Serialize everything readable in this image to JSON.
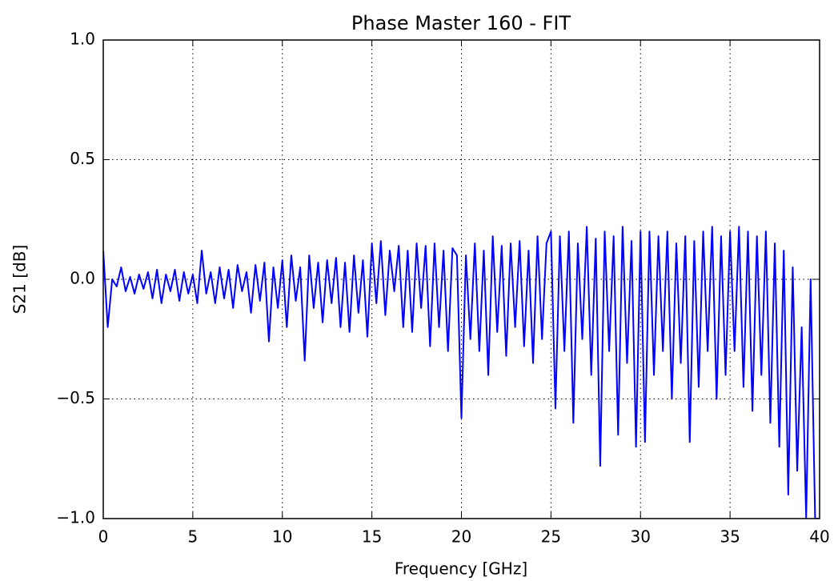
{
  "chart_data": {
    "type": "line",
    "title": "Phase Master 160 - FIT",
    "xlabel": "Frequency [GHz]",
    "ylabel": "S21 [dB]",
    "color": "#0000ff",
    "grid": true,
    "xlim": [
      0,
      40
    ],
    "xticks": [
      0,
      5,
      10,
      15,
      20,
      25,
      30,
      35,
      40
    ],
    "ylim": [
      -1,
      1
    ],
    "yticks": [
      {
        "value": -1,
        "label": "−1.0"
      },
      {
        "value": -0.5,
        "label": "−0.5"
      },
      {
        "value": 0,
        "label": "0.0"
      },
      {
        "value": 0.5,
        "label": "0.5"
      },
      {
        "value": 1,
        "label": "1.0"
      }
    ],
    "x": [
      0,
      0.25,
      0.5,
      0.75,
      1,
      1.25,
      1.5,
      1.75,
      2,
      2.25,
      2.5,
      2.75,
      3,
      3.25,
      3.5,
      3.75,
      4,
      4.25,
      4.5,
      4.75,
      5,
      5.25,
      5.5,
      5.75,
      6,
      6.25,
      6.5,
      6.75,
      7,
      7.25,
      7.5,
      7.75,
      8,
      8.25,
      8.5,
      8.75,
      9,
      9.25,
      9.5,
      9.75,
      10,
      10.25,
      10.5,
      10.75,
      11,
      11.25,
      11.5,
      11.75,
      12,
      12.25,
      12.5,
      12.75,
      13,
      13.25,
      13.5,
      13.75,
      14,
      14.25,
      14.5,
      14.75,
      15,
      15.25,
      15.5,
      15.75,
      16,
      16.25,
      16.5,
      16.75,
      17,
      17.25,
      17.5,
      17.75,
      18,
      18.25,
      18.5,
      18.75,
      19,
      19.25,
      19.5,
      19.75,
      20,
      20.25,
      20.5,
      20.75,
      21,
      21.25,
      21.5,
      21.75,
      22,
      22.25,
      22.5,
      22.75,
      23,
      23.25,
      23.5,
      23.75,
      24,
      24.25,
      24.5,
      24.75,
      25,
      25.25,
      25.5,
      25.75,
      26,
      26.25,
      26.5,
      26.75,
      27,
      27.25,
      27.5,
      27.75,
      28,
      28.25,
      28.5,
      28.75,
      29,
      29.25,
      29.5,
      29.75,
      30,
      30.25,
      30.5,
      30.75,
      31,
      31.25,
      31.5,
      31.75,
      32,
      32.25,
      32.5,
      32.75,
      33,
      33.25,
      33.5,
      33.75,
      34,
      34.25,
      34.5,
      34.75,
      35,
      35.25,
      35.5,
      35.75,
      36,
      36.25,
      36.5,
      36.75,
      37,
      37.25,
      37.5,
      37.75,
      38,
      38.25,
      38.5,
      38.75,
      39,
      39.25,
      39.5,
      39.75,
      40
    ],
    "values": [
      0.12,
      -0.2,
      0.0,
      -0.03,
      0.05,
      -0.05,
      0.01,
      -0.06,
      0.02,
      -0.04,
      0.03,
      -0.08,
      0.04,
      -0.1,
      0.02,
      -0.05,
      0.04,
      -0.09,
      0.03,
      -0.06,
      0.02,
      -0.1,
      0.12,
      -0.06,
      0.03,
      -0.1,
      0.05,
      -0.08,
      0.04,
      -0.12,
      0.06,
      -0.05,
      0.03,
      -0.14,
      0.06,
      -0.09,
      0.07,
      -0.26,
      0.05,
      -0.12,
      0.08,
      -0.2,
      0.1,
      -0.09,
      0.05,
      -0.34,
      0.1,
      -0.12,
      0.07,
      -0.18,
      0.08,
      -0.1,
      0.09,
      -0.2,
      0.07,
      -0.22,
      0.1,
      -0.14,
      0.08,
      -0.24,
      0.15,
      -0.1,
      0.16,
      -0.15,
      0.12,
      -0.05,
      0.14,
      -0.2,
      0.12,
      -0.22,
      0.15,
      -0.12,
      0.14,
      -0.28,
      0.15,
      -0.2,
      0.12,
      -0.3,
      0.13,
      0.1,
      -0.58,
      0.1,
      -0.25,
      0.15,
      -0.3,
      0.12,
      -0.4,
      0.18,
      -0.22,
      0.14,
      -0.32,
      0.15,
      -0.2,
      0.16,
      -0.28,
      0.12,
      -0.35,
      0.18,
      -0.25,
      0.15,
      0.2,
      -0.54,
      0.18,
      -0.3,
      0.2,
      -0.6,
      0.15,
      -0.25,
      0.22,
      -0.4,
      0.17,
      -0.78,
      0.2,
      -0.3,
      0.18,
      -0.65,
      0.22,
      -0.35,
      0.16,
      -0.7,
      0.2,
      -0.68,
      0.2,
      -0.4,
      0.18,
      -0.3,
      0.2,
      -0.5,
      0.15,
      -0.35,
      0.18,
      -0.68,
      0.16,
      -0.45,
      0.2,
      -0.3,
      0.22,
      -0.5,
      0.18,
      -0.4,
      0.2,
      -0.3,
      0.22,
      -0.45,
      0.2,
      -0.55,
      0.18,
      -0.4,
      0.2,
      -0.6,
      0.15,
      -0.7,
      0.12,
      -0.9,
      0.05,
      -0.8,
      -0.2,
      -1.0,
      0.0,
      -1.0,
      -1.0
    ]
  }
}
